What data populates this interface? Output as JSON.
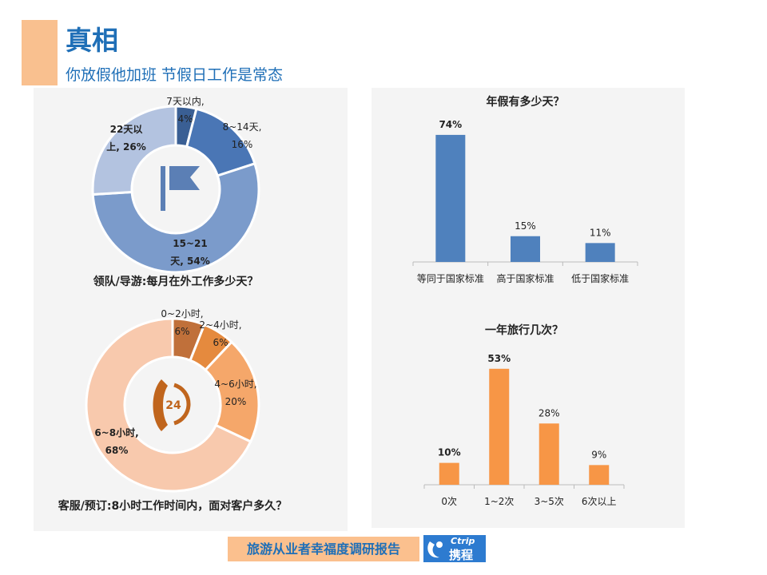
{
  "header": {
    "title": "真相",
    "subtitle": "你放假他加班   节假日工作是常态"
  },
  "footer": {
    "text": "旅游从业者幸福度调研报告",
    "logo_text": "Ctrip 携程",
    "logo_en": "Ctrip",
    "logo_cn": "携程"
  },
  "chart_data": [
    {
      "type": "pie",
      "variant": "donut",
      "title": "领队/导游:每月在外工作多少天？",
      "center_icon": "flag-icon",
      "labels": [
        "7天以内",
        "8~14天",
        "15~21天",
        "22天以上"
      ],
      "values": [
        4,
        16,
        54,
        26
      ],
      "colors": [
        "#3a5f94",
        "#4a76b5",
        "#7b9bcb",
        "#b3c3e0"
      ]
    },
    {
      "type": "pie",
      "variant": "donut",
      "title": "客服/预订:8小时工作时间内，面对客户多久？",
      "center_icon": "phone-24-icon",
      "center_text": "24",
      "labels": [
        "0~2小时",
        "2~4小时",
        "4~6小时",
        "6~8小时"
      ],
      "values": [
        6,
        6,
        20,
        68
      ],
      "colors": [
        "#c0703a",
        "#e58a3e",
        "#f5a76a",
        "#f8c9ad"
      ]
    },
    {
      "type": "bar",
      "title": "年假有多少天？",
      "categories": [
        "等同于国家标准",
        "高于国家标准",
        "低于国家标准"
      ],
      "values": [
        74,
        15,
        11
      ],
      "value_labels": [
        "74%",
        "15%",
        "11%"
      ],
      "color": "#4f81bd",
      "grid": false
    },
    {
      "type": "bar",
      "title": "一年旅行几次？",
      "categories": [
        "0次",
        "1~2次",
        "3~5次",
        "6次以上"
      ],
      "values": [
        10,
        53,
        28,
        9
      ],
      "value_labels": [
        "10%",
        "53%",
        "28%",
        "9%"
      ],
      "color": "#f79646",
      "grid": false
    }
  ]
}
